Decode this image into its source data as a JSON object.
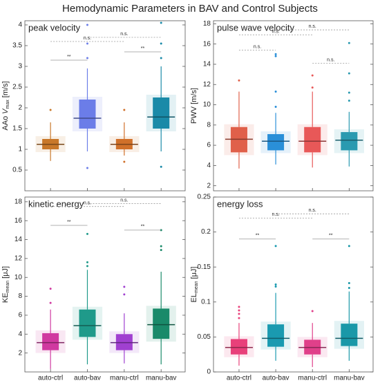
{
  "title": "Hemodynamic Parameters in BAV and Control Subjects",
  "chart_data": [
    {
      "type": "box",
      "title": "peak velocity",
      "ylabel": [
        {
          "text": "AAo"
        },
        {
          "text": "V",
          "italic": true
        },
        {
          "text": "max",
          "sub": true
        },
        {
          "text": "[m/s]"
        }
      ],
      "ylim": [
        0,
        4.1
      ],
      "yticks": [
        0.5,
        1,
        1.5,
        2,
        2.5,
        3,
        3.5,
        4
      ],
      "boxes": [
        {
          "color": "#c8782a",
          "whislo": 0.72,
          "q1": 1.0,
          "med": 1.12,
          "q3": 1.25,
          "whishi": 1.65,
          "fliers": [
            1.95
          ]
        },
        {
          "color": "#6b7de8",
          "whislo": 0.95,
          "q1": 1.5,
          "med": 1.75,
          "q3": 2.2,
          "whishi": 2.95,
          "fliers": [
            0.55,
            3.2,
            3.55,
            4.0
          ]
        },
        {
          "color": "#d0702a",
          "whislo": 0.85,
          "q1": 1.0,
          "med": 1.12,
          "q3": 1.25,
          "whishi": 1.65,
          "fliers": [
            0.7,
            1.95
          ]
        },
        {
          "color": "#1a8aa8",
          "whislo": 0.95,
          "q1": 1.5,
          "med": 1.78,
          "q3": 2.25,
          "whishi": 3.0,
          "fliers": [
            0.58,
            3.2,
            3.55,
            4.05
          ]
        }
      ],
      "significance": [
        {
          "from": 0,
          "to": 1,
          "y": 3.15,
          "label": "**",
          "dashed": false
        },
        {
          "from": 2,
          "to": 3,
          "y": 3.35,
          "label": "**",
          "dashed": false
        },
        {
          "from": 0,
          "to": 2,
          "y": 3.6,
          "label": "n.s.",
          "dashed": true
        },
        {
          "from": 1,
          "to": 3,
          "y": 3.7,
          "label": "n.s.",
          "dashed": true
        }
      ]
    },
    {
      "type": "box",
      "title": "pulse wave velocity",
      "ylabel": [
        {
          "text": "PWV"
        },
        {
          "text": "[m/s]"
        }
      ],
      "ylim": [
        1.5,
        18.3
      ],
      "yticks": [
        2,
        4,
        6,
        8,
        10,
        12,
        14,
        16,
        18
      ],
      "boxes": [
        {
          "color": "#e0604a",
          "whislo": 3.7,
          "q1": 5.3,
          "med": 6.6,
          "q3": 7.8,
          "whishi": 11.3,
          "fliers": [
            12.4
          ]
        },
        {
          "color": "#2a8fd8",
          "whislo": 4.1,
          "q1": 5.5,
          "med": 6.4,
          "q3": 7.1,
          "whishi": 9.2,
          "fliers": [
            9.8,
            11.3,
            14.8,
            15
          ]
        },
        {
          "color": "#e85858",
          "whislo": 3.8,
          "q1": 5.3,
          "med": 6.4,
          "q3": 7.8,
          "whishi": 11.3,
          "fliers": [
            11.7,
            12.9
          ]
        },
        {
          "color": "#2a9ab0",
          "whislo": 3.9,
          "q1": 5.5,
          "med": 6.5,
          "q3": 7.3,
          "whishi": 9.3,
          "fliers": [
            10.4,
            11.2,
            13.1,
            16.1
          ]
        }
      ],
      "significance": [
        {
          "from": 0,
          "to": 1,
          "y": 15.4,
          "label": "n.s.",
          "dashed": true
        },
        {
          "from": 2,
          "to": 3,
          "y": 14.1,
          "label": "n.s.",
          "dashed": true
        },
        {
          "from": 0,
          "to": 2,
          "y": 16.9,
          "label": "n.s.",
          "dashed": true
        },
        {
          "from": 1,
          "to": 3,
          "y": 17.4,
          "label": "n.s.",
          "dashed": true
        }
      ]
    },
    {
      "type": "box",
      "title": "kinetic energy",
      "ylabel": [
        {
          "text": "KE"
        },
        {
          "text": "mean",
          "sub": true
        },
        {
          "text": "[μJ]"
        }
      ],
      "ylim": [
        0,
        18.5
      ],
      "yticks": [
        2,
        4,
        6,
        8,
        10,
        12,
        14,
        16,
        18
      ],
      "categories": [
        "auto-ctrl",
        "auto-bav",
        "manu-ctrl",
        "manu-bav"
      ],
      "boxes": [
        {
          "color": "#d03aa0",
          "whislo": 0.3,
          "q1": 2.3,
          "med": 3.1,
          "q3": 4.1,
          "whishi": 6.6,
          "fliers": [
            7.3,
            8.8
          ]
        },
        {
          "color": "#1f9a8a",
          "whislo": 0.8,
          "q1": 3.7,
          "med": 4.9,
          "q3": 6.6,
          "whishi": 10.8,
          "fliers": [
            11.2,
            11.6,
            14.6
          ]
        },
        {
          "color": "#a040d0",
          "whislo": 0.9,
          "q1": 2.3,
          "med": 3.1,
          "q3": 4.0,
          "whishi": 6.2,
          "fliers": [
            8.2,
            9.0
          ]
        },
        {
          "color": "#1a8a6a",
          "whislo": 0.8,
          "q1": 3.5,
          "med": 5.0,
          "q3": 6.7,
          "whishi": 10.6,
          "fliers": [
            12.9,
            13.3,
            15
          ]
        }
      ],
      "significance": [
        {
          "from": 0,
          "to": 1,
          "y": 15.5,
          "label": "**",
          "dashed": false
        },
        {
          "from": 2,
          "to": 3,
          "y": 15.0,
          "label": "**",
          "dashed": false
        },
        {
          "from": 0,
          "to": 2,
          "y": 17.5,
          "label": "n.s.",
          "dashed": true
        },
        {
          "from": 1,
          "to": 3,
          "y": 17.8,
          "label": "n.s.",
          "dashed": true
        }
      ]
    },
    {
      "type": "box",
      "title": "energy loss",
      "ylabel": [
        {
          "text": "EL"
        },
        {
          "text": "mean",
          "sub": true
        },
        {
          "text": "[μJ]"
        }
      ],
      "ylim": [
        0,
        0.25
      ],
      "yticks": [
        0,
        0.05,
        0.1,
        0.15,
        0.2,
        0.25
      ],
      "categories": [
        "auto-ctrl",
        "auto-bav",
        "manu-ctrl",
        "manu-bav"
      ],
      "boxes": [
        {
          "color": "#e8407a",
          "whislo": 0.009,
          "q1": 0.025,
          "med": 0.035,
          "q3": 0.047,
          "whishi": 0.07,
          "fliers": [
            0.077,
            0.083,
            0.088,
            0.093
          ]
        },
        {
          "color": "#1a9ab0",
          "whislo": 0.016,
          "q1": 0.036,
          "med": 0.048,
          "q3": 0.068,
          "whishi": 0.113,
          "fliers": [
            0.122,
            0.125,
            0.18
          ]
        },
        {
          "color": "#e0408a",
          "whislo": 0.007,
          "q1": 0.025,
          "med": 0.035,
          "q3": 0.046,
          "whishi": 0.07,
          "fliers": [
            0.087
          ]
        },
        {
          "color": "#1a98a8",
          "whislo": 0.016,
          "q1": 0.037,
          "med": 0.048,
          "q3": 0.069,
          "whishi": 0.115,
          "fliers": [
            0.12,
            0.127,
            0.18
          ]
        }
      ],
      "significance": [
        {
          "from": 0,
          "to": 1,
          "y": 0.19,
          "label": "**",
          "dashed": false
        },
        {
          "from": 2,
          "to": 3,
          "y": 0.19,
          "label": "**",
          "dashed": false
        },
        {
          "from": 0,
          "to": 2,
          "y": 0.22,
          "label": "n.s.",
          "dashed": true
        },
        {
          "from": 1,
          "to": 3,
          "y": 0.226,
          "label": "n.s.",
          "dashed": true
        }
      ]
    }
  ]
}
